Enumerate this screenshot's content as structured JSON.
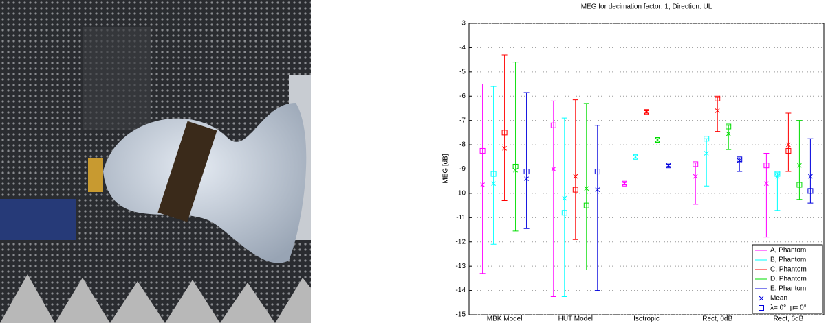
{
  "chart_data": {
    "type": "errorbar",
    "title": "MEG for decimation factor: 1, Direction: UL",
    "y_label": "MEG [dB]",
    "categories": [
      "MBK Model",
      "HUT Model",
      "Isotropic",
      "Rect, 0dB",
      "Rect, 6dB"
    ],
    "ylim": [
      -15,
      -3
    ],
    "yticks": [
      -15,
      -14,
      -13,
      -12,
      -11,
      -10,
      -9,
      -8,
      -7,
      -6,
      -5,
      -4,
      -3
    ],
    "grid": true,
    "legend": "lower right",
    "mean_label": "Mean",
    "nominal_label": "λ= 0°, μ= 0°",
    "series": [
      {
        "name": "A, Phantom",
        "color": "#ff00ff",
        "mean": [
          -9.65,
          -9.0,
          -9.6,
          -9.3,
          -9.6
        ],
        "nominal": [
          -8.25,
          -7.2,
          -9.6,
          -8.8,
          -8.85
        ],
        "low": [
          -13.3,
          -14.25,
          -9.65,
          -10.45,
          -11.8
        ],
        "high": [
          -5.5,
          -6.2,
          -9.55,
          -8.75,
          -8.35
        ]
      },
      {
        "name": "B, Phantom",
        "color": "#00ffff",
        "mean": [
          -9.6,
          -10.2,
          -8.5,
          -8.35,
          -9.3
        ],
        "nominal": [
          -9.2,
          -10.8,
          -8.5,
          -7.75,
          -9.2
        ],
        "low": [
          -12.1,
          -14.25,
          -8.55,
          -9.7,
          -10.7
        ],
        "high": [
          -5.6,
          -6.9,
          -8.45,
          -7.75,
          -9.15
        ]
      },
      {
        "name": "C, Phantom",
        "color": "#ff0000",
        "mean": [
          -8.15,
          -9.3,
          -6.65,
          -6.6,
          -8.0
        ],
        "nominal": [
          -7.5,
          -9.85,
          -6.65,
          -6.1,
          -8.25
        ],
        "low": [
          -10.3,
          -11.9,
          -6.7,
          -7.45,
          -9.1
        ],
        "high": [
          -4.3,
          -6.15,
          -6.6,
          -6.05,
          -6.7
        ]
      },
      {
        "name": "D, Phantom",
        "color": "#00dd00",
        "mean": [
          -9.05,
          -9.8,
          -7.8,
          -7.55,
          -8.85
        ],
        "nominal": [
          -8.9,
          -10.5,
          -7.8,
          -7.25,
          -9.65
        ],
        "low": [
          -11.55,
          -13.15,
          -7.85,
          -8.2,
          -10.25
        ],
        "high": [
          -4.6,
          -6.3,
          -7.75,
          -7.2,
          -7.0
        ]
      },
      {
        "name": "E, Phantom",
        "color": "#0000dd",
        "mean": [
          -9.4,
          -9.85,
          -8.85,
          -8.65,
          -9.3
        ],
        "nominal": [
          -9.1,
          -9.1,
          -8.85,
          -8.6,
          -9.9
        ],
        "low": [
          -11.45,
          -14.0,
          -8.9,
          -9.1,
          -10.4
        ],
        "high": [
          -5.85,
          -7.2,
          -8.8,
          -8.55,
          -7.75
        ]
      }
    ]
  }
}
